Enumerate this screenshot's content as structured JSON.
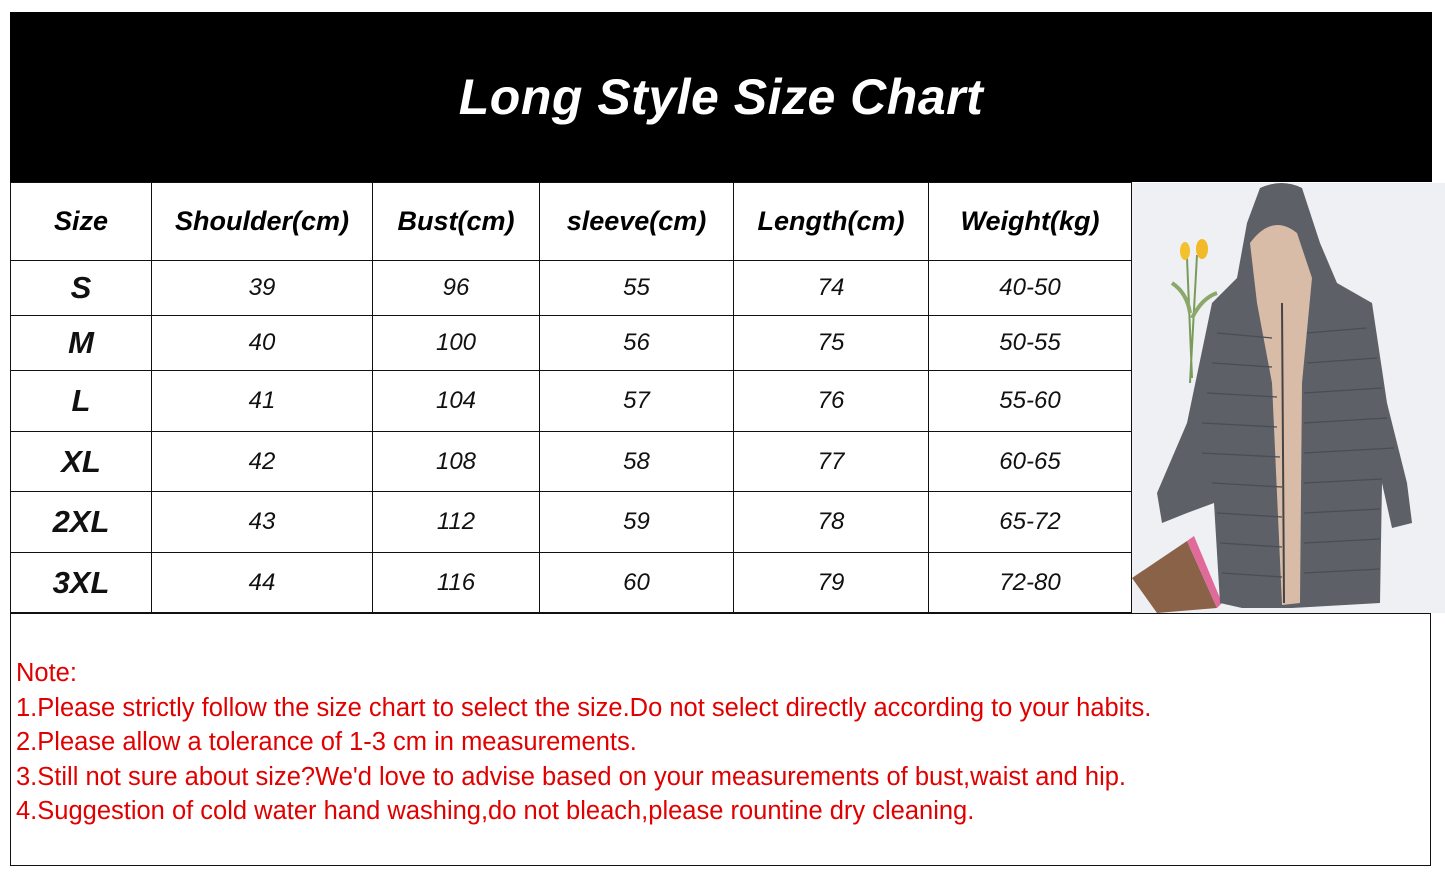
{
  "title": "Long Style Size Chart",
  "table": {
    "headers": [
      "Size",
      "Shoulder(cm)",
      "Bust(cm)",
      "sleeve(cm)",
      "Length(cm)",
      "Weight(kg)"
    ],
    "rows": [
      [
        "S",
        "39",
        "96",
        "55",
        "74",
        "40-50"
      ],
      [
        "M",
        "40",
        "100",
        "56",
        "75",
        "50-55"
      ],
      [
        "L",
        "41",
        "104",
        "57",
        "76",
        "55-60"
      ],
      [
        "XL",
        "42",
        "108",
        "58",
        "77",
        "60-65"
      ],
      [
        "2XL",
        "43",
        "112",
        "59",
        "78",
        "65-72"
      ],
      [
        "3XL",
        "44",
        "116",
        "60",
        "79",
        "72-80"
      ]
    ]
  },
  "notes": {
    "heading": "Note:",
    "items": [
      "1.Please strictly follow the size chart to select the size.Do not select directly according to your habits.",
      "2.Please allow a tolerance of 1-3 cm in measurements.",
      "3.Still not sure about size?We'd love to advise based on your measurements of bust,waist and hip.",
      "4.Suggestion of cold water hand washing,do not bleach,please rountine dry cleaning."
    ],
    "color": "#e00000"
  },
  "photo": {
    "icon": "gray-hooded-fleece-lined-long-puffer-coat"
  }
}
